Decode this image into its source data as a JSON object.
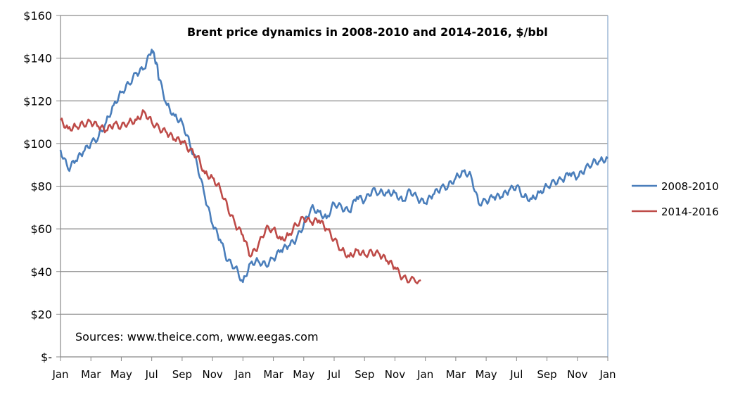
{
  "chart_data": {
    "type": "line",
    "title": "Brent price dynamics in 2008-2010 and 2014-2016, $/bbl",
    "annotation": "Sources: www.theice.com, www.eegas.com",
    "xlabel": "",
    "ylabel": "",
    "ylim": [
      0,
      160
    ],
    "xlim_months": [
      0,
      36
    ],
    "y_ticks": [
      0,
      20,
      40,
      60,
      80,
      100,
      120,
      140,
      160
    ],
    "y_tick_labels": [
      "$-",
      "$20",
      "$40",
      "$60",
      "$80",
      "$100",
      "$120",
      "$140",
      "$160"
    ],
    "x_tick_labels": [
      "Jan",
      "Mar",
      "May",
      "Jul",
      "Sep",
      "Nov",
      "Jan",
      "Mar",
      "May",
      "Jul",
      "Sep",
      "Nov",
      "Jan",
      "Mar",
      "May",
      "Jul",
      "Sep",
      "Nov",
      "Jan"
    ],
    "grid": true,
    "legend_position": "right",
    "series": [
      {
        "name": "2008-2010",
        "color": "#4a7ebb",
        "x": [
          0,
          0.5,
          1,
          1.5,
          2,
          2.5,
          3,
          3.5,
          4,
          4.5,
          5,
          5.5,
          6,
          6.3,
          6.5,
          7,
          7.5,
          8,
          8.5,
          9,
          9.5,
          10,
          10.5,
          11,
          11.5,
          12,
          12.5,
          13,
          13.5,
          14,
          14.5,
          15,
          15.5,
          16,
          16.5,
          17,
          17.5,
          18,
          18.5,
          19,
          19.5,
          20,
          20.5,
          21,
          21.5,
          22,
          22.5,
          23,
          23.5,
          24,
          24.5,
          25,
          25.5,
          26,
          26.5,
          27,
          27.5,
          28,
          28.5,
          29,
          29.5,
          30,
          30.5,
          31,
          31.5,
          32,
          32.5,
          33,
          33.5,
          34,
          34.5,
          35,
          35.5,
          36
        ],
        "values": [
          97,
          88,
          92,
          96,
          100,
          103,
          110,
          118,
          124,
          128,
          133,
          135,
          144,
          138,
          130,
          118,
          113,
          110,
          100,
          90,
          75,
          62,
          55,
          45,
          42,
          35,
          44,
          45,
          43,
          46,
          50,
          52,
          55,
          62,
          70,
          68,
          65,
          72,
          70,
          68,
          75,
          73,
          78,
          77,
          77,
          77,
          73,
          78,
          74,
          72,
          76,
          79,
          80,
          84,
          87,
          85,
          72,
          73,
          75,
          75,
          78,
          80,
          75,
          74,
          77,
          80,
          82,
          83,
          86,
          84,
          88,
          91,
          92,
          93
        ]
      },
      {
        "name": "2014-2016",
        "color": "#be4b48",
        "x": [
          0,
          0.5,
          1,
          1.5,
          2,
          2.5,
          3,
          3.5,
          4,
          4.5,
          5,
          5.5,
          6,
          6.5,
          7,
          7.5,
          8,
          8.5,
          9,
          9.5,
          10,
          10.5,
          11,
          11.5,
          12,
          12.5,
          13,
          13.5,
          14,
          14.5,
          15,
          15.5,
          16,
          16.5,
          17,
          17.5,
          18,
          18.5,
          19,
          19.5,
          20,
          20.5,
          21,
          21.5,
          22,
          22.5,
          23,
          23.7
        ],
        "values": [
          111,
          107,
          108,
          109,
          110,
          108,
          106,
          109,
          108,
          110,
          111,
          115,
          110,
          107,
          105,
          102,
          101,
          97,
          94,
          86,
          84,
          79,
          70,
          62,
          57,
          47,
          52,
          60,
          60,
          55,
          57,
          62,
          65,
          63,
          64,
          60,
          55,
          50,
          47,
          50,
          48,
          49,
          48,
          45,
          42,
          37,
          36,
          36
        ]
      }
    ]
  }
}
